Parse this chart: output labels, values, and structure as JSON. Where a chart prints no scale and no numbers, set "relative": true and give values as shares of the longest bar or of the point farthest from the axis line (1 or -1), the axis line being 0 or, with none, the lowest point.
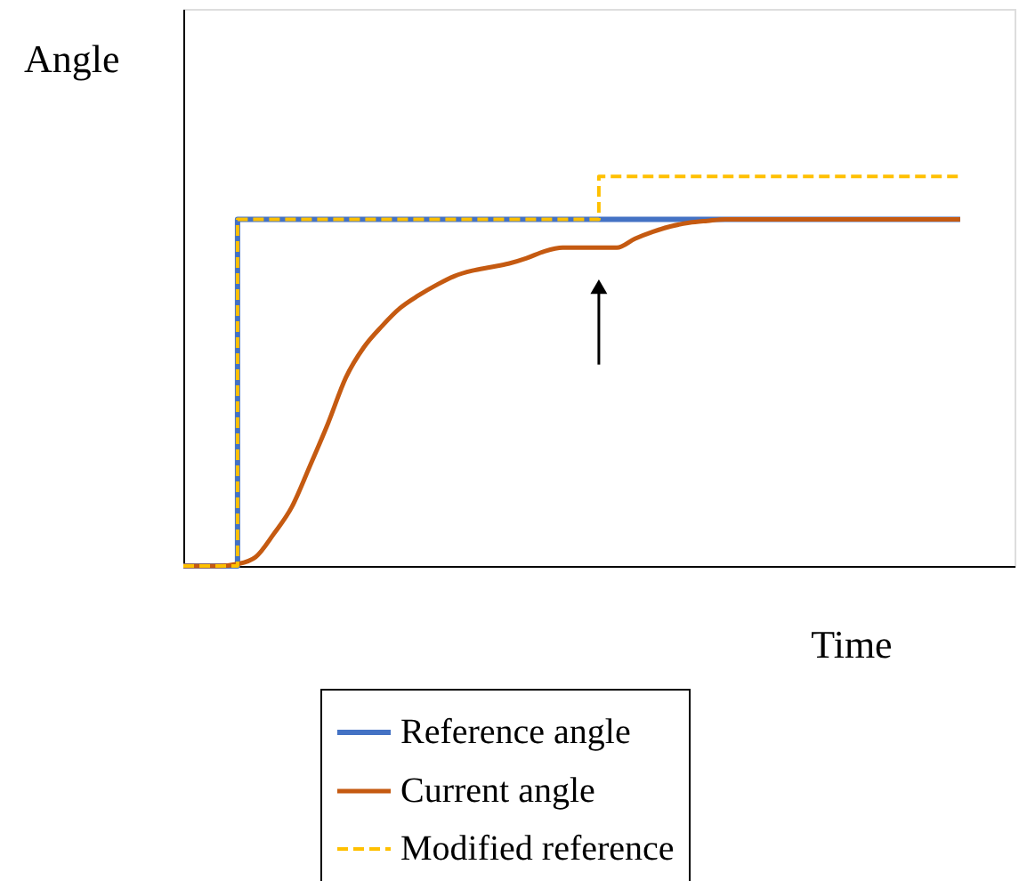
{
  "chart_data": {
    "type": "line",
    "relative": true,
    "xlabel": "Time",
    "ylabel": "Angle",
    "legend": "bottom",
    "grid": false,
    "tick_labels": false,
    "categories": [
      null,
      null,
      null,
      null,
      null,
      null,
      null,
      null,
      null,
      null,
      null,
      null,
      null,
      null,
      null,
      null,
      null,
      null,
      null,
      null,
      null,
      null,
      null,
      null,
      null,
      null,
      null,
      null,
      null,
      null,
      null,
      null,
      null,
      null,
      null,
      null,
      null,
      null,
      null,
      null,
      null,
      null,
      null,
      null
    ],
    "series": [
      {
        "name": "Reference angle",
        "color": "#4472c4",
        "type": "step",
        "line_style": "solid",
        "values": [
          0,
          0,
          0,
          0.89,
          0.89,
          0.89,
          0.89,
          0.89,
          0.89,
          0.89,
          0.89,
          0.89,
          0.89,
          0.89,
          0.89,
          0.89,
          0.89,
          0.89,
          0.89,
          0.89,
          0.89,
          0.89,
          0.89,
          0.89,
          0.89,
          0.89,
          0.89,
          0.89,
          0.89,
          0.89,
          0.89,
          0.89,
          0.89,
          0.89,
          0.89,
          0.89,
          0.89,
          0.89,
          0.89,
          0.89,
          0.89,
          0.89,
          0.89,
          0.89
        ]
      },
      {
        "name": "Current angle",
        "color": "#c55a11",
        "line_style": "solid",
        "values": [
          0,
          0,
          0,
          0.005,
          0.023,
          0.082,
          0.151,
          0.256,
          0.365,
          0.484,
          0.562,
          0.616,
          0.662,
          0.694,
          0.721,
          0.744,
          0.758,
          0.767,
          0.776,
          0.79,
          0.808,
          0.817,
          0.817,
          0.817,
          0.817,
          0.84,
          0.858,
          0.872,
          0.881,
          0.886,
          0.89,
          0.89,
          0.89,
          0.89,
          0.89,
          0.89,
          0.89,
          0.89,
          0.89,
          0.89,
          0.89,
          0.89,
          0.89,
          0.89
        ]
      },
      {
        "name": "Modified reference",
        "color": "#ffc000",
        "type": "step",
        "line_style": "dashed",
        "values": [
          0,
          0,
          0,
          0.89,
          0.89,
          0.89,
          0.89,
          0.89,
          0.89,
          0.89,
          0.89,
          0.89,
          0.89,
          0.89,
          0.89,
          0.89,
          0.89,
          0.89,
          0.89,
          0.89,
          0.89,
          0.89,
          0.89,
          1,
          1,
          1,
          1,
          1,
          1,
          1,
          1,
          1,
          1,
          1,
          1,
          1,
          1,
          1,
          1,
          1,
          1,
          1,
          1,
          1
        ]
      }
    ]
  }
}
